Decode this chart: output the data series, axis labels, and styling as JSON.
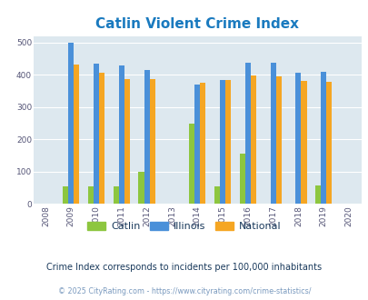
{
  "title": "Catlin Violent Crime Index",
  "title_color": "#1a7abf",
  "years": [
    2009,
    2010,
    2011,
    2012,
    2013,
    2014,
    2015,
    2016,
    2017,
    2018,
    2019
  ],
  "catlin": [
    55,
    55,
    55,
    100,
    0,
    248,
    55,
    155,
    0,
    0,
    58
  ],
  "illinois": [
    499,
    435,
    428,
    414,
    0,
    370,
    384,
    438,
    438,
    405,
    408
  ],
  "national": [
    431,
    405,
    387,
    387,
    0,
    376,
    383,
    397,
    394,
    381,
    379
  ],
  "catlin_color": "#8dc63f",
  "illinois_color": "#4a90d9",
  "national_color": "#f5a623",
  "bg_color": "#dde8ef",
  "ylim": [
    0,
    520
  ],
  "yticks": [
    0,
    100,
    200,
    300,
    400,
    500
  ],
  "all_years": [
    "2008",
    "2009",
    "2010",
    "2011",
    "2012",
    "2013",
    "2014",
    "2015",
    "2016",
    "2017",
    "2018",
    "2019",
    "2020"
  ],
  "subtitle": "Crime Index corresponds to incidents per 100,000 inhabitants",
  "subtitle_color": "#1a3a5c",
  "footer": "© 2025 CityRating.com - https://www.cityrating.com/crime-statistics/",
  "footer_color": "#7a9abf",
  "legend_labels": [
    "Catlin",
    "Illinois",
    "National"
  ]
}
